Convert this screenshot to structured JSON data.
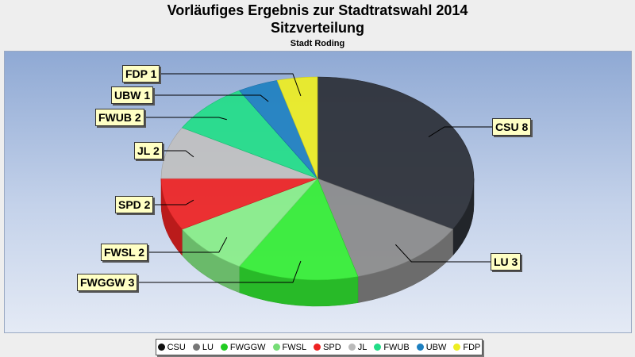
{
  "chart_data": {
    "type": "pie",
    "title": "Vorläufiges Ergebnis zur Stadtratswahl 2014",
    "subtitle": "Sitzverteilung",
    "caption": "Stadt Roding",
    "slices": [
      {
        "name": "CSU",
        "value": 8,
        "label": "CSU 8",
        "color": "#2b2f36"
      },
      {
        "name": "LU",
        "value": 3,
        "label": "LU 3",
        "color": "#8a8a8a"
      },
      {
        "name": "FWGGW",
        "value": 3,
        "label": "FWGGW 3",
        "color": "#33ee33"
      },
      {
        "name": "FWSL",
        "value": 2,
        "label": "FWSL 2",
        "color": "#88ee88"
      },
      {
        "name": "SPD",
        "value": 2,
        "label": "SPD 2",
        "color": "#ee2222"
      },
      {
        "name": "JL",
        "value": 2,
        "label": "JL 2",
        "color": "#c0c0c0"
      },
      {
        "name": "FWUB",
        "value": 2,
        "label": "FWUB 2",
        "color": "#22dd88"
      },
      {
        "name": "UBW",
        "value": 1,
        "label": "UBW 1",
        "color": "#1e80c0"
      },
      {
        "name": "FDP",
        "value": 1,
        "label": "FDP 1",
        "color": "#eeee22"
      }
    ],
    "legend": {
      "position": "bottom",
      "entries": [
        {
          "name": "CSU",
          "color": "#111111"
        },
        {
          "name": "LU",
          "color": "#777777"
        },
        {
          "name": "FWGGW",
          "color": "#22cc22"
        },
        {
          "name": "FWSL",
          "color": "#77dd77"
        },
        {
          "name": "SPD",
          "color": "#ee2222"
        },
        {
          "name": "JL",
          "color": "#bbbbbb"
        },
        {
          "name": "FWUB",
          "color": "#22dd88"
        },
        {
          "name": "UBW",
          "color": "#1e80c0"
        },
        {
          "name": "FDP",
          "color": "#eeee22"
        }
      ]
    }
  }
}
